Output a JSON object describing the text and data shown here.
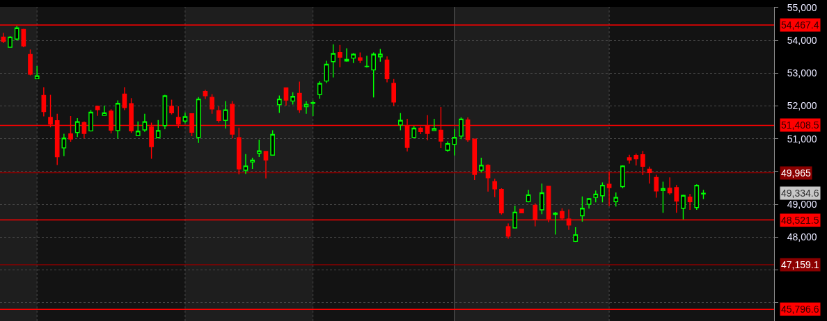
{
  "chart_data": {
    "type": "candlestick",
    "categories": [
      null,
      null,
      null,
      null,
      null,
      null,
      null,
      null,
      null,
      null,
      null,
      null,
      null,
      null,
      null,
      null,
      null,
      null,
      null,
      null,
      null,
      null,
      null,
      null,
      null,
      null,
      null,
      null,
      null,
      null,
      null,
      null,
      null,
      null,
      null,
      null,
      null,
      null,
      null,
      null,
      null,
      null,
      null,
      null,
      null,
      null,
      null,
      null,
      null,
      null,
      null,
      null,
      null,
      null,
      null,
      null,
      null,
      null,
      null,
      null,
      null,
      null,
      null,
      null,
      null,
      null,
      null,
      null,
      null,
      null,
      null,
      null,
      null,
      null,
      null,
      null,
      null,
      null,
      null,
      null,
      null,
      null,
      null,
      null,
      null,
      null,
      null,
      null,
      null,
      null,
      null,
      null,
      null,
      null,
      null,
      null,
      null,
      null,
      null,
      null,
      null,
      null,
      null,
      null,
      null,
      null,
      null,
      null,
      null,
      null,
      null,
      null,
      null,
      null,
      null
    ],
    "ohlc": [
      [
        54100,
        54230,
        53920,
        53970
      ],
      [
        53790,
        54130,
        53790,
        54100
      ],
      [
        54040,
        54440,
        54000,
        54380
      ],
      [
        54330,
        54350,
        53790,
        53830
      ],
      [
        53570,
        53720,
        52930,
        52970
      ],
      [
        52830,
        53220,
        52830,
        52920
      ],
      [
        52320,
        52570,
        51680,
        51830
      ],
      [
        51650,
        52340,
        51350,
        51450
      ],
      [
        51550,
        51760,
        50200,
        50450
      ],
      [
        50720,
        51150,
        50470,
        51020
      ],
      [
        51150,
        51690,
        50910,
        50990
      ],
      [
        51190,
        51630,
        51050,
        51520
      ],
      [
        51490,
        51530,
        51010,
        51160
      ],
      [
        51240,
        51880,
        51220,
        51810
      ],
      [
        51990,
        52000,
        51700,
        51890
      ],
      [
        51710,
        52010,
        51710,
        51790
      ],
      [
        51840,
        51900,
        51160,
        51260
      ],
      [
        51250,
        52170,
        51010,
        52080
      ],
      [
        52360,
        52570,
        51870,
        51950
      ],
      [
        52070,
        52240,
        51180,
        51240
      ],
      [
        51100,
        51530,
        51100,
        51230
      ],
      [
        51270,
        51760,
        51210,
        51520
      ],
      [
        51360,
        51490,
        50390,
        50760
      ],
      [
        51040,
        51570,
        51010,
        51250
      ],
      [
        51400,
        52340,
        51290,
        52310
      ],
      [
        51990,
        52190,
        51740,
        51790
      ],
      [
        51650,
        51990,
        51330,
        51450
      ],
      [
        51540,
        51800,
        51470,
        51670
      ],
      [
        51760,
        51760,
        51080,
        51200
      ],
      [
        51040,
        52270,
        50870,
        52210
      ],
      [
        52440,
        52490,
        52210,
        52310
      ],
      [
        52260,
        52360,
        51760,
        51910
      ],
      [
        51860,
        51990,
        51490,
        51560
      ],
      [
        51560,
        52150,
        51310,
        51880
      ],
      [
        52050,
        52150,
        51010,
        51140
      ],
      [
        51030,
        51340,
        49910,
        50080
      ],
      [
        50040,
        50530,
        49930,
        50170
      ],
      [
        50290,
        50420,
        50080,
        50350
      ],
      [
        50560,
        50970,
        50440,
        50630
      ],
      [
        50610,
        50630,
        49790,
        50350
      ],
      [
        50500,
        51260,
        50500,
        51130
      ],
      [
        52040,
        52320,
        51790,
        52210
      ],
      [
        52550,
        52550,
        52010,
        52180
      ],
      [
        52150,
        52420,
        52040,
        52290
      ],
      [
        52380,
        52740,
        51790,
        51890
      ],
      [
        51980,
        52150,
        51760,
        52050
      ],
      [
        52080,
        52170,
        51690,
        52100
      ],
      [
        52350,
        52750,
        52220,
        52690
      ],
      [
        52760,
        53380,
        52700,
        53270
      ],
      [
        53350,
        53880,
        52870,
        53600
      ],
      [
        53630,
        53860,
        53180,
        53490
      ],
      [
        53370,
        53760,
        53350,
        53420
      ],
      [
        53460,
        53610,
        53310,
        53580
      ],
      [
        53470,
        53630,
        53310,
        53390
      ],
      [
        53200,
        53530,
        53170,
        53210
      ],
      [
        53100,
        53630,
        52260,
        53580
      ],
      [
        53500,
        53740,
        53350,
        53580
      ],
      [
        53400,
        53510,
        52720,
        52830
      ],
      [
        52690,
        52820,
        52000,
        52120
      ],
      [
        51420,
        51780,
        51260,
        51560
      ],
      [
        51400,
        51610,
        50610,
        50740
      ],
      [
        51040,
        51390,
        51040,
        51320
      ],
      [
        51320,
        51370,
        51140,
        51220
      ],
      [
        51400,
        51720,
        50950,
        51160
      ],
      [
        51250,
        51610,
        51250,
        51310
      ],
      [
        51260,
        51970,
        50720,
        50930
      ],
      [
        50650,
        50920,
        50600,
        50850
      ],
      [
        50830,
        51300,
        50490,
        51040
      ],
      [
        51080,
        51650,
        50990,
        51600
      ],
      [
        51570,
        51650,
        50910,
        50970
      ],
      [
        50990,
        50990,
        49740,
        49910
      ],
      [
        50040,
        50420,
        49970,
        50190
      ],
      [
        50190,
        50220,
        49390,
        49810
      ],
      [
        49690,
        49780,
        49220,
        49470
      ],
      [
        49450,
        49490,
        48690,
        48740
      ],
      [
        48320,
        48420,
        47950,
        48030
      ],
      [
        48280,
        48960,
        48280,
        48760
      ],
      [
        48850,
        48860,
        48740,
        48740
      ],
      [
        49080,
        49440,
        49060,
        49290
      ],
      [
        48970,
        49030,
        48330,
        48530
      ],
      [
        48830,
        49630,
        48700,
        49350
      ],
      [
        49550,
        49550,
        48450,
        48560
      ],
      [
        48690,
        48770,
        48080,
        48730
      ],
      [
        48780,
        48880,
        48520,
        48580
      ],
      [
        48550,
        48840,
        48220,
        48370
      ],
      [
        47870,
        48300,
        47850,
        48070
      ],
      [
        48650,
        49240,
        48470,
        48880
      ],
      [
        49000,
        49190,
        48870,
        49170
      ],
      [
        49210,
        49420,
        49060,
        49310
      ],
      [
        49260,
        49670,
        49060,
        49580
      ],
      [
        49610,
        50000,
        48940,
        49510
      ],
      [
        49080,
        49360,
        48930,
        49210
      ],
      [
        49540,
        50190,
        49490,
        50170
      ],
      [
        50420,
        50510,
        50240,
        50350
      ],
      [
        50490,
        50550,
        50180,
        50390
      ],
      [
        50510,
        50630,
        49890,
        50160
      ],
      [
        50070,
        50150,
        49630,
        49970
      ],
      [
        49820,
        49900,
        49200,
        49410
      ],
      [
        49420,
        49690,
        48740,
        49480
      ],
      [
        49490,
        49820,
        49290,
        49350
      ],
      [
        49510,
        49590,
        48740,
        49100
      ],
      [
        48880,
        49290,
        48540,
        49270
      ],
      [
        49220,
        49320,
        48830,
        49080
      ],
      [
        48900,
        49610,
        48830,
        49580
      ],
      [
        49320,
        49440,
        49160,
        49334.6
      ],
      null,
      null,
      null,
      null,
      null,
      null,
      null,
      null,
      null,
      null
    ],
    "colors": [
      "#ff0000",
      "#00ff00",
      "#00ff00",
      "#ff0000",
      "#ff0000",
      "#00ff00",
      "#ff0000",
      "#ff0000",
      "#ff0000",
      "#00ff00",
      "#ff0000",
      "#00ff00",
      "#ff0000",
      "#00ff00",
      "#ff0000",
      "#00ff00",
      "#ff0000",
      "#00ff00",
      "#ff0000",
      "#ff0000",
      "#00ff00",
      "#00ff00",
      "#ff0000",
      "#00ff00",
      "#00ff00",
      "#ff0000",
      "#ff0000",
      "#00ff00",
      "#ff0000",
      "#00ff00",
      "#ff0000",
      "#ff0000",
      "#ff0000",
      "#00ff00",
      "#ff0000",
      "#ff0000",
      "#00ff00",
      "#00ff00",
      "#00ff00",
      "#ff0000",
      "#00ff00",
      "#00ff00",
      "#ff0000",
      "#00ff00",
      "#ff0000",
      "#00ff00",
      "#00ff00",
      "#00ff00",
      "#00ff00",
      "#00ff00",
      "#ff0000",
      "#00ff00",
      "#00ff00",
      "#ff0000",
      "#00ff00",
      "#00ff00",
      "#00ff00",
      "#ff0000",
      "#ff0000",
      "#00ff00",
      "#ff0000",
      "#00ff00",
      "#ff0000",
      "#ff0000",
      "#00ff00",
      "#ff0000",
      "#00ff00",
      "#00ff00",
      "#00ff00",
      "#ff0000",
      "#ff0000",
      "#00ff00",
      "#ff0000",
      "#ff0000",
      "#ff0000",
      "#ff0000",
      "#00ff00",
      "#ff0000",
      "#00ff00",
      "#ff0000",
      "#00ff00",
      "#ff0000",
      "#00ff00",
      "#ff0000",
      "#ff0000",
      "#00ff00",
      "#00ff00",
      "#00ff00",
      "#00ff00",
      "#00ff00",
      "#ff0000",
      "#00ff00",
      "#00ff00",
      "#ff0000",
      "#ff0000",
      "#ff0000",
      "#ff0000",
      "#ff0000",
      "#00ff00",
      "#ff0000",
      "#ff0000",
      "#00ff00",
      "#ff0000",
      "#00ff00",
      "#00ff00",
      null,
      null,
      null,
      null,
      null,
      null,
      null,
      null,
      null,
      null
    ],
    "ylim": [
      45440,
      55020
    ],
    "yticks": [
      {
        "value": 46000,
        "label": null
      },
      {
        "value": 47000,
        "label": null
      },
      {
        "value": 48000,
        "label": "48,000"
      },
      {
        "value": 49000,
        "label": "49,000"
      },
      {
        "value": 50000,
        "label": null
      },
      {
        "value": 51000,
        "label": "51,000"
      },
      {
        "value": 52000,
        "label": "52,000"
      },
      {
        "value": 53000,
        "label": "53,000"
      },
      {
        "value": 54000,
        "label": "54,000"
      },
      {
        "value": 55000,
        "label": "55,000"
      }
    ],
    "grid": true,
    "tick_labels": "y",
    "ref_lines": [
      {
        "axis": "y",
        "value": 54467.4,
        "label": "54,467.4",
        "color": "#ff0000"
      },
      {
        "axis": "y",
        "value": 51408.5,
        "label": "51,408.5",
        "color": "#ff0000"
      },
      {
        "axis": "y",
        "value": 49965,
        "label": "49,965",
        "color": "#8b0000"
      },
      {
        "axis": "y",
        "value": 48521.5,
        "label": "48,521.5",
        "color": "#ff0000"
      },
      {
        "axis": "y",
        "value": 47159.1,
        "label": "47,159.1",
        "color": "#8b0000"
      },
      {
        "axis": "y",
        "value": 45796.6,
        "label": "45,796.6",
        "color": "#ff0000"
      }
    ],
    "annotations": [
      "49,334.6"
    ]
  }
}
